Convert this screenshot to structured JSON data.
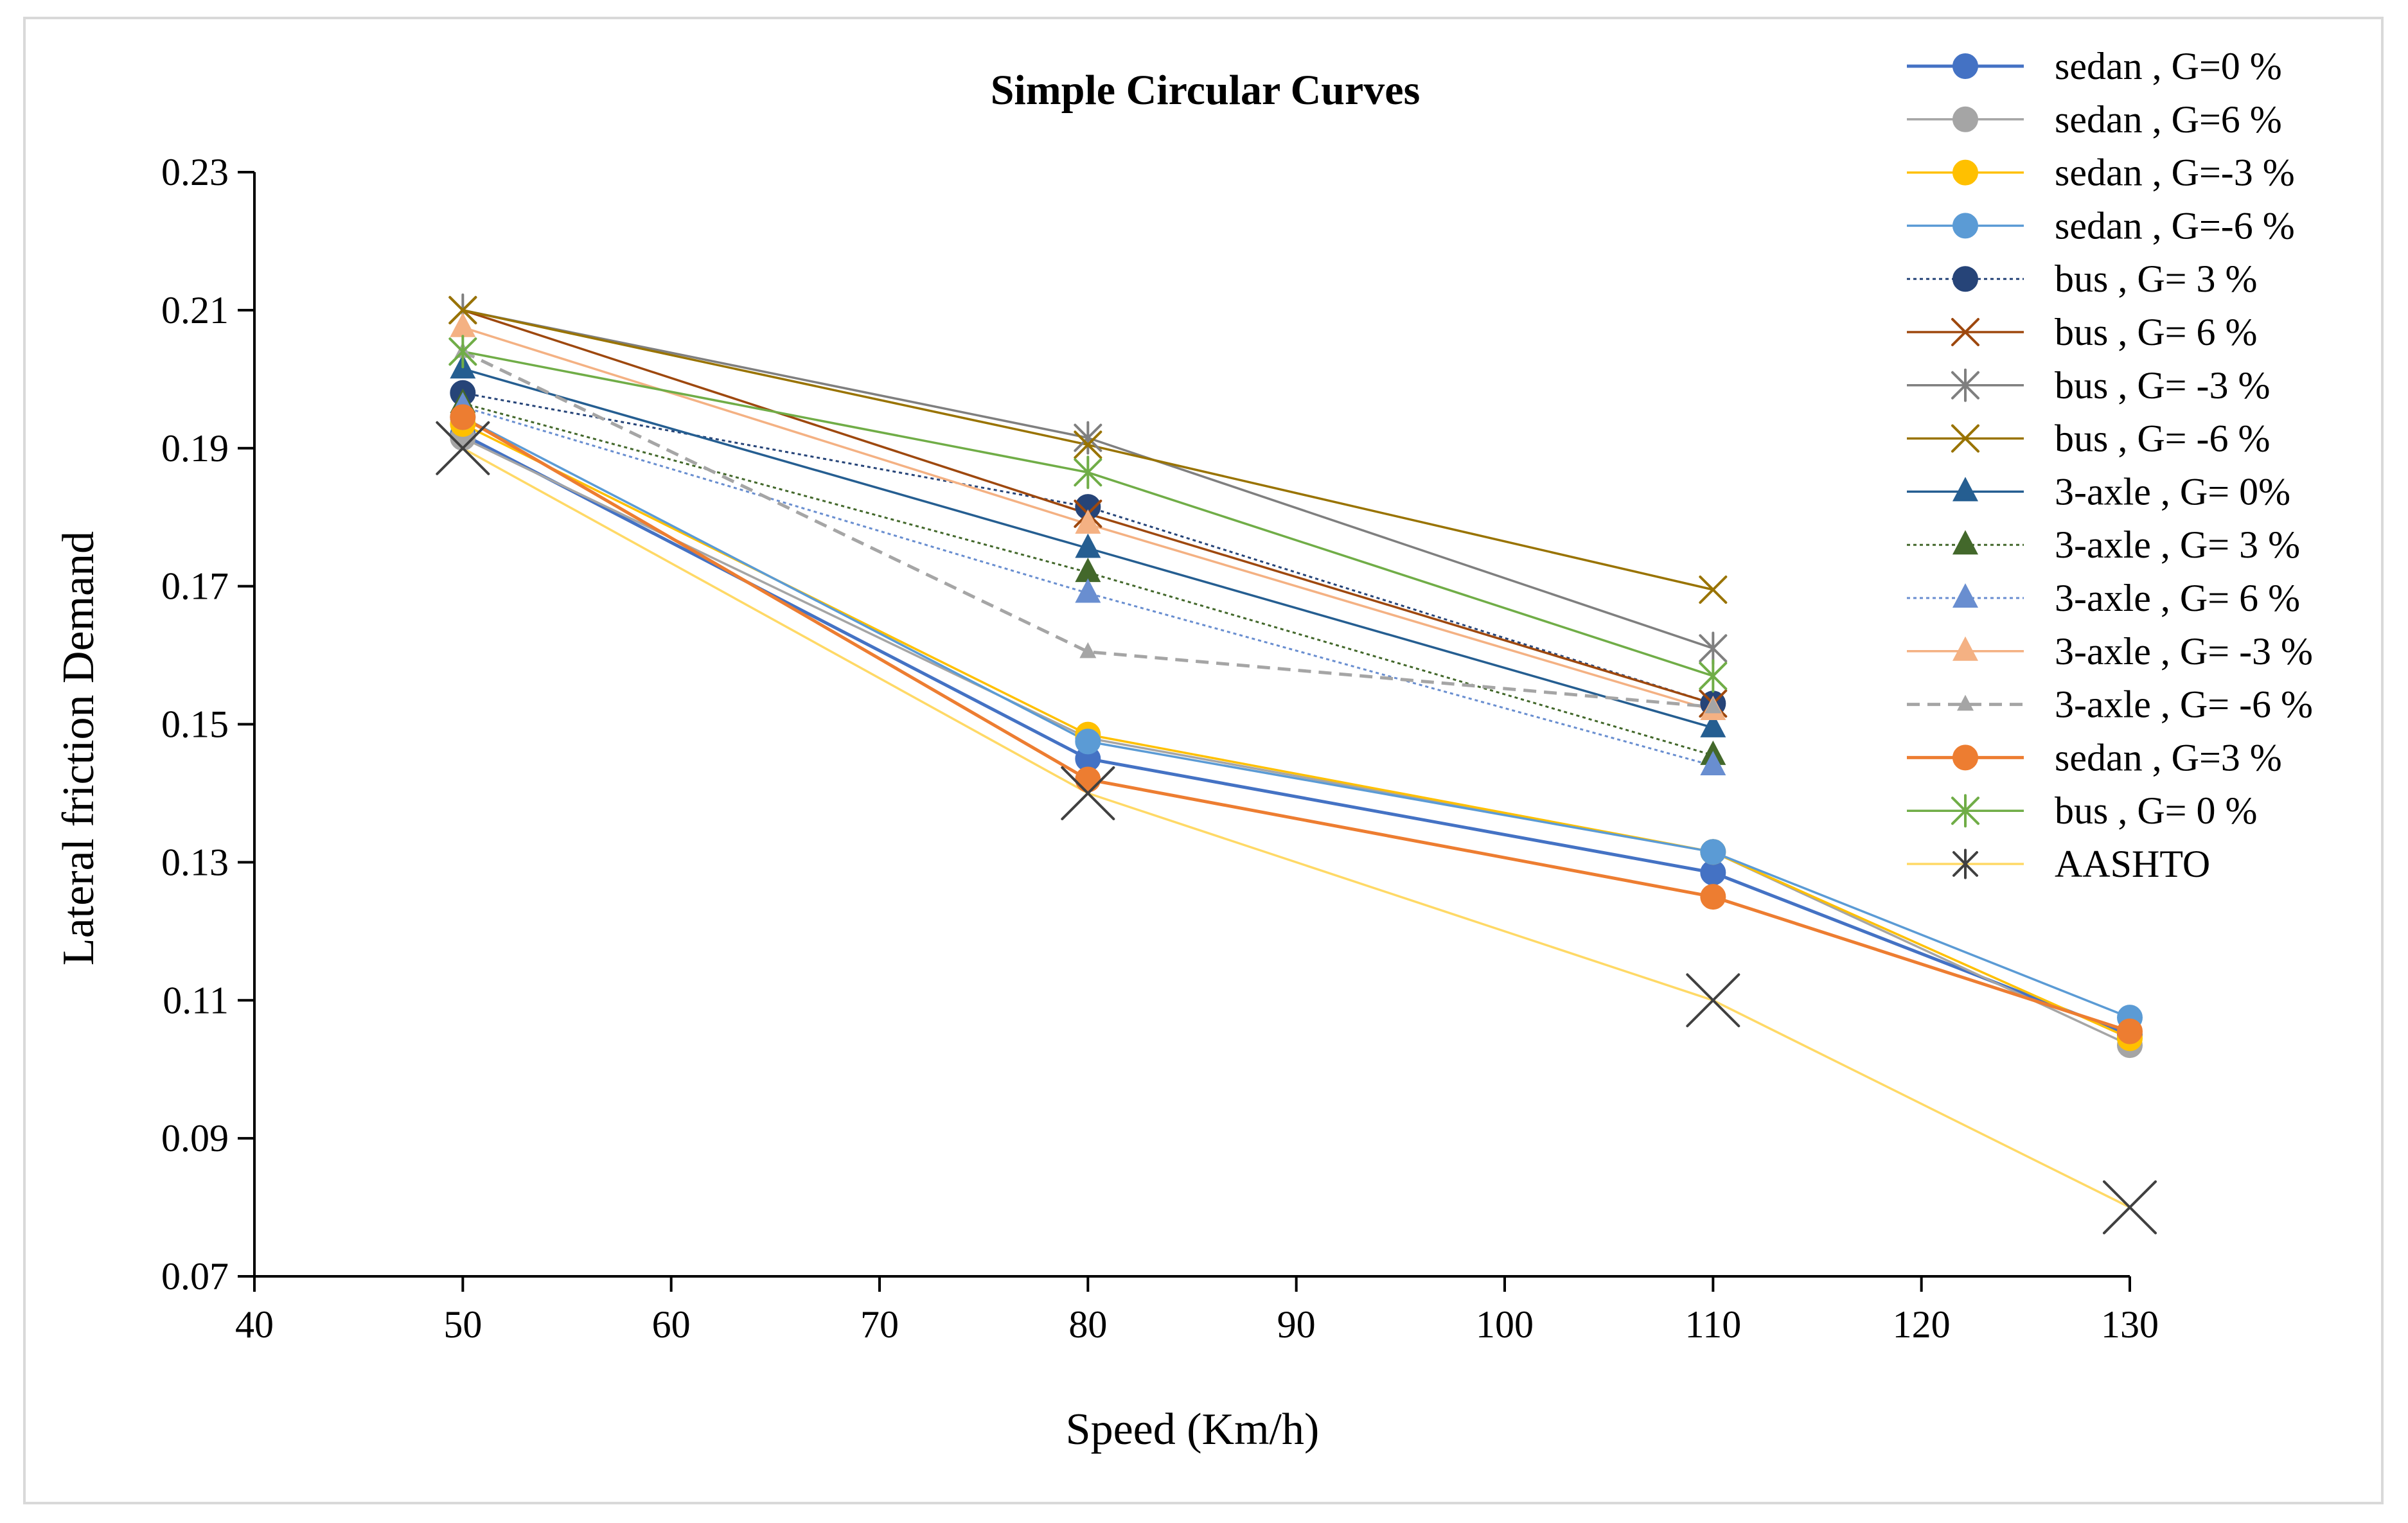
{
  "chart_data": {
    "type": "line",
    "title": "Simple Circular Curves",
    "xlabel": "Speed (Km/h)",
    "ylabel": "Lateral friction Demand",
    "xlim": [
      40,
      130
    ],
    "ylim": [
      0.07,
      0.23
    ],
    "x_ticks": [
      "40",
      "50",
      "60",
      "70",
      "80",
      "90",
      "100",
      "110",
      "120",
      "130"
    ],
    "y_ticks": [
      "0.07",
      "0.09",
      "0.11",
      "0.13",
      "0.15",
      "0.17",
      "0.19",
      "0.21",
      "0.23"
    ],
    "grid": false,
    "legend_position": "right",
    "series": [
      {
        "name": "sedan , G=0 %",
        "color": "#4472C4",
        "marker": "circle",
        "dash": "solid",
        "x": [
          50,
          80,
          110,
          130
        ],
        "values": [
          0.192,
          0.145,
          0.1285,
          0.105
        ]
      },
      {
        "name": "sedan , G=6 %",
        "color": "#A5A5A5",
        "marker": "circle",
        "dash": "solid",
        "x": [
          50,
          80,
          110,
          130
        ],
        "values": [
          0.1915,
          0.148,
          0.1315,
          0.1035
        ]
      },
      {
        "name": "sedan , G=-3 %",
        "color": "#FFC000",
        "marker": "circle",
        "dash": "solid",
        "x": [
          50,
          80,
          110,
          130
        ],
        "values": [
          0.1935,
          0.1485,
          0.1315,
          0.1045
        ]
      },
      {
        "name": "sedan , G=-6 %",
        "color": "#5B9BD5",
        "marker": "circle",
        "dash": "solid",
        "x": [
          50,
          80,
          110,
          130
        ],
        "values": [
          0.1945,
          0.1475,
          0.1315,
          0.1075
        ]
      },
      {
        "name": "bus , G= 3 %",
        "color": "#264478",
        "marker": "circle",
        "dash": "dotted",
        "x": [
          50,
          80,
          110
        ],
        "values": [
          0.198,
          0.1815,
          0.153
        ]
      },
      {
        "name": "bus , G= 6 %",
        "color": "#9E480E",
        "marker": "x",
        "dash": "solid",
        "x": [
          50,
          80,
          110
        ],
        "values": [
          0.21,
          0.1805,
          0.153
        ]
      },
      {
        "name": "bus , G= -3 %",
        "color": "#7F7F7F",
        "marker": "star",
        "dash": "solid",
        "x": [
          50,
          80,
          110
        ],
        "values": [
          0.21,
          0.1915,
          0.161
        ]
      },
      {
        "name": "bus , G= -6 %",
        "color": "#997300",
        "marker": "x",
        "dash": "solid",
        "x": [
          50,
          80,
          110
        ],
        "values": [
          0.21,
          0.1905,
          0.1695
        ]
      },
      {
        "name": "3-axle , G= 0%",
        "color": "#255E91",
        "marker": "triangle",
        "dash": "solid",
        "x": [
          50,
          80,
          110
        ],
        "values": [
          0.2015,
          0.1755,
          0.1495
        ]
      },
      {
        "name": "3-axle , G= 3 %",
        "color": "#43682B",
        "marker": "triangle",
        "dash": "dotted",
        "x": [
          50,
          80,
          110
        ],
        "values": [
          0.1965,
          0.172,
          0.1455
        ]
      },
      {
        "name": "3-axle , G= 6 %",
        "color": "#698ED0",
        "marker": "triangle",
        "dash": "dotted",
        "x": [
          50,
          80,
          110
        ],
        "values": [
          0.196,
          0.169,
          0.144
        ]
      },
      {
        "name": "3-axle , G= -3 %",
        "color": "#F4B183",
        "marker": "triangle",
        "dash": "solid",
        "x": [
          50,
          80,
          110
        ],
        "values": [
          0.2075,
          0.179,
          0.152
        ]
      },
      {
        "name": "3-axle , G= -6 %",
        "color": "#A5A5A5",
        "marker": "triangle-small",
        "dash": "dashed",
        "x": [
          50,
          80,
          110
        ],
        "values": [
          0.204,
          0.1605,
          0.1525
        ]
      },
      {
        "name": "sedan , G=3 %",
        "color": "#ED7D31",
        "marker": "circle",
        "dash": "solid",
        "x": [
          50,
          80,
          110,
          130
        ],
        "values": [
          0.1945,
          0.142,
          0.125,
          0.1055
        ]
      },
      {
        "name": "bus , G= 0 %",
        "color": "#70AD47",
        "marker": "star",
        "dash": "solid",
        "x": [
          50,
          80,
          110
        ],
        "values": [
          0.204,
          0.1865,
          0.157
        ]
      },
      {
        "name": "AASHTO",
        "color": "#FFD966",
        "marker": "big-x",
        "marker_color": "#404040",
        "dash": "solid",
        "x": [
          50,
          80,
          110,
          130
        ],
        "values": [
          0.19,
          0.14,
          0.11,
          0.08
        ]
      }
    ]
  }
}
